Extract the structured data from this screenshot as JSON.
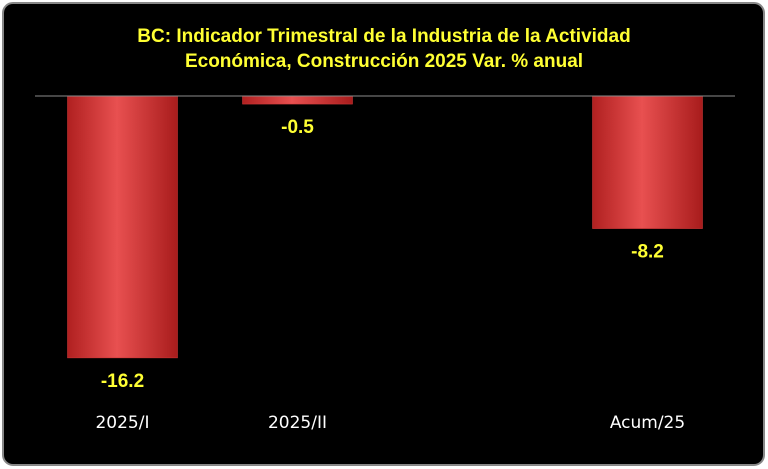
{
  "chart_data": {
    "type": "bar",
    "title": [
      "BC: Indicador Trimestral de la Industria de la  Actividad",
      "Económica, Construcción 2025 Var. % anual"
    ],
    "categories": [
      "2025/I",
      "2025/II",
      null,
      "Acum/25"
    ],
    "values": [
      -16.2,
      -0.5,
      null,
      -8.2
    ],
    "color": "#d93a3a",
    "ylim": [
      -18,
      0
    ]
  }
}
